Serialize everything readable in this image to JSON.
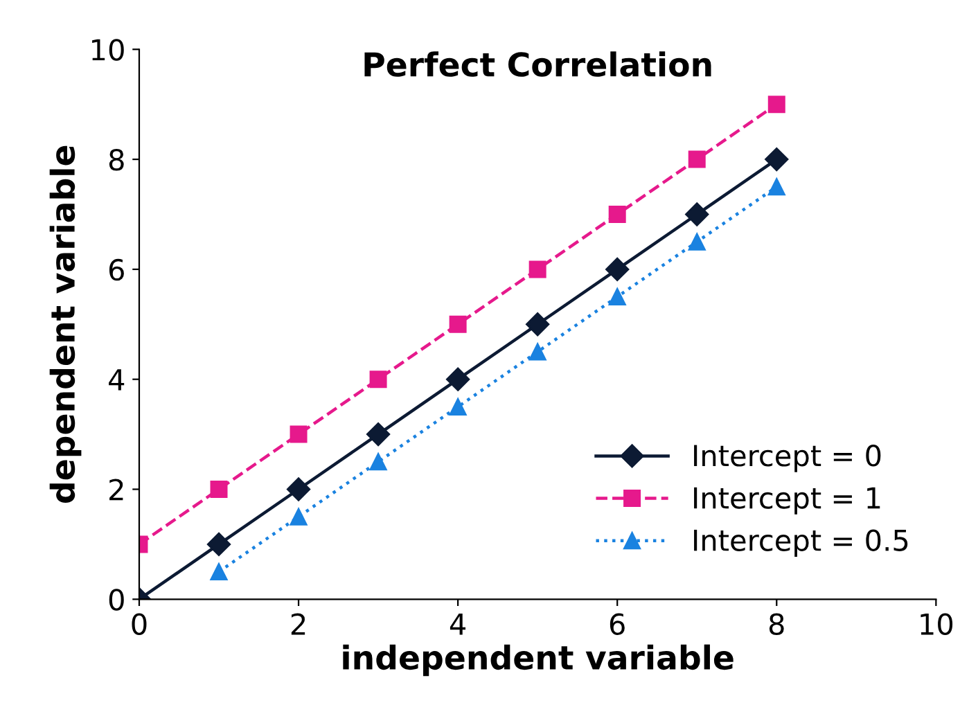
{
  "chart_data": {
    "type": "line",
    "title": "Perfect Correlation",
    "xlabel": "independent variable",
    "ylabel": "dependent variable",
    "x": [
      0,
      1,
      2,
      3,
      4,
      5,
      6,
      7,
      8
    ],
    "series": [
      {
        "name": "Intercept = 0",
        "color": "#0c1a33",
        "values": [
          0,
          1,
          2,
          3,
          4,
          5,
          6,
          7,
          8
        ],
        "marker": "diamond",
        "line_style": "solid"
      },
      {
        "name": "Intercept = 1",
        "color": "#e6198c",
        "values": [
          1,
          2,
          3,
          4,
          5,
          6,
          7,
          8,
          9
        ],
        "marker": "square",
        "line_style": "dashed"
      },
      {
        "name": "Intercept = 0.5",
        "color": "#1a82e0",
        "x": [
          1,
          2,
          3,
          4,
          5,
          6,
          7,
          8
        ],
        "values": [
          0.5,
          1.5,
          2.5,
          3.5,
          4.5,
          5.5,
          6.5,
          7.5
        ],
        "marker": "triangle",
        "line_style": "dotted"
      }
    ],
    "xlim": [
      0,
      10
    ],
    "ylim": [
      0,
      10
    ],
    "xticks": [
      0,
      2,
      4,
      6,
      8,
      10
    ],
    "yticks": [
      0,
      2,
      4,
      6,
      8,
      10
    ],
    "grid": false,
    "legend": "bottom right"
  }
}
